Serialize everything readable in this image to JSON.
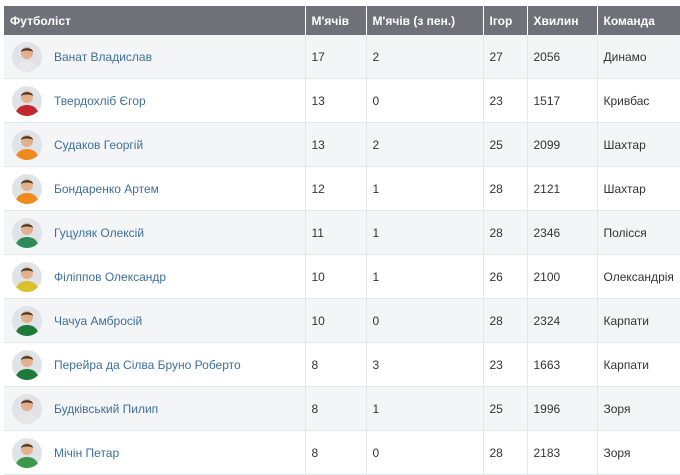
{
  "table": {
    "headers": [
      "Футболіст",
      "М'ячів",
      "М'ячів (з пен.)",
      "Ігор",
      "Хвилин",
      "Команда"
    ],
    "rows": [
      {
        "name": "Ванат Владислав",
        "goals": "17",
        "pen_goals": "2",
        "games": "27",
        "minutes": "2056",
        "team": "Динамо",
        "kit_color": "#e9e9ea"
      },
      {
        "name": "Твердохліб Єгор",
        "goals": "13",
        "pen_goals": "0",
        "games": "23",
        "minutes": "1517",
        "team": "Кривбас",
        "kit_color": "#c1272d"
      },
      {
        "name": "Судаков Георгій",
        "goals": "13",
        "pen_goals": "2",
        "games": "25",
        "minutes": "2099",
        "team": "Шахтар",
        "kit_color": "#f08a1c"
      },
      {
        "name": "Бондаренко Артем",
        "goals": "12",
        "pen_goals": "1",
        "games": "28",
        "minutes": "2121",
        "team": "Шахтар",
        "kit_color": "#f08a1c"
      },
      {
        "name": "Гуцуляк Олексій",
        "goals": "11",
        "pen_goals": "1",
        "games": "28",
        "minutes": "2346",
        "team": "Полісся",
        "kit_color": "#2e8b57"
      },
      {
        "name": "Філіппов Олександр",
        "goals": "10",
        "pen_goals": "1",
        "games": "26",
        "minutes": "2100",
        "team": "Олександрія",
        "kit_color": "#d9c12a"
      },
      {
        "name": "Чачуа Амбросій",
        "goals": "10",
        "pen_goals": "0",
        "games": "28",
        "minutes": "2324",
        "team": "Карпати",
        "kit_color": "#1f7a3a"
      },
      {
        "name": "Перейра да Сілва Бруно Роберто",
        "goals": "8",
        "pen_goals": "3",
        "games": "23",
        "minutes": "1663",
        "team": "Карпати",
        "kit_color": "#1f7a3a"
      },
      {
        "name": "Будківський Пилип",
        "goals": "8",
        "pen_goals": "1",
        "games": "25",
        "minutes": "1996",
        "team": "Зоря",
        "kit_color": "#e6e6e6"
      },
      {
        "name": "Мічін Петар",
        "goals": "8",
        "pen_goals": "0",
        "games": "28",
        "minutes": "2183",
        "team": "Зоря",
        "kit_color": "#3a9a4a"
      }
    ]
  }
}
